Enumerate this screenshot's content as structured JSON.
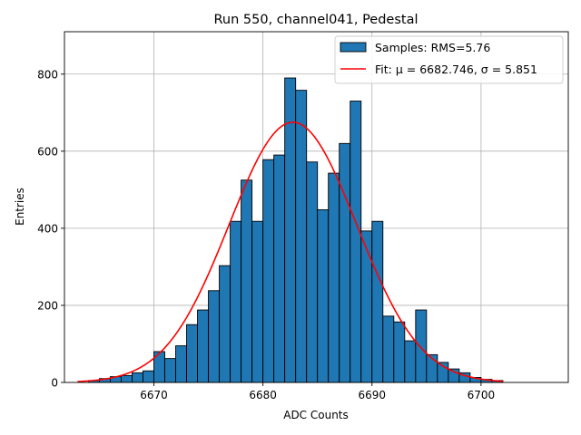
{
  "chart_data": {
    "type": "histogram",
    "title": "Run 550, channel041, Pedestal",
    "xlabel": "ADC Counts",
    "ylabel": "Entries",
    "xlim": [
      6661.8,
      6708.0
    ],
    "ylim": [
      0,
      910
    ],
    "xticks": [
      6670,
      6680,
      6690,
      6700
    ],
    "yticks": [
      0,
      200,
      400,
      600,
      800
    ],
    "grid": true,
    "bin_start": 6664,
    "bin_width": 1,
    "counts": [
      5,
      10,
      15,
      18,
      25,
      30,
      80,
      62,
      95,
      150,
      188,
      238,
      303,
      418,
      525,
      418,
      578,
      590,
      790,
      758,
      572,
      448,
      543,
      620,
      730,
      393,
      418,
      172,
      157,
      108,
      188,
      72,
      52,
      35,
      25,
      13,
      8,
      5
    ],
    "legend": {
      "location": "upper right",
      "entries": [
        {
          "label": "Samples: RMS=5.76",
          "kind": "bar"
        },
        {
          "label": "Fit: μ = 6682.746, σ = 5.851",
          "kind": "line"
        }
      ]
    },
    "fit": {
      "type": "gaussian",
      "mu": 6682.746,
      "sigma": 5.851,
      "amplitude": 675,
      "x_range": [
        6663,
        6702
      ]
    },
    "colors": {
      "bar_fill": "#1f77b4",
      "bar_edge": "#000000",
      "fit_line": "#ff0000",
      "grid": "#b0b0b0"
    }
  }
}
